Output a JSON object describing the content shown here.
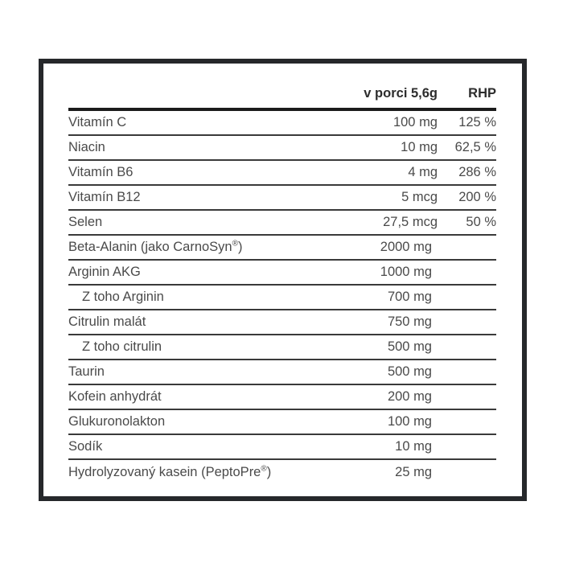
{
  "label_panel": {
    "header": {
      "amount_col": "v porci 5,6g",
      "rhp_col": "RHP"
    },
    "rows": [
      {
        "label": "Vitamín C",
        "amount": "100 mg",
        "rhp": "125 %",
        "indent": false
      },
      {
        "label": "Niacin",
        "amount": "10 mg",
        "rhp": "62,5 %",
        "indent": false
      },
      {
        "label": "Vitamín B6",
        "amount": "4 mg",
        "rhp": "286 %",
        "indent": false
      },
      {
        "label": "Vitamín B12",
        "amount": "5 mcg",
        "rhp": "200 %",
        "indent": false
      },
      {
        "label": "Selen",
        "amount": "27,5 mcg",
        "rhp": "50 %",
        "indent": false
      },
      {
        "label": "Beta-Alanin (jako CarnoSyn®)",
        "amount": "2000 mg",
        "rhp": "",
        "indent": false
      },
      {
        "label": "Arginin AKG",
        "amount": "1000 mg",
        "rhp": "",
        "indent": false
      },
      {
        "label": "Z toho Arginin",
        "amount": "700 mg",
        "rhp": "",
        "indent": true
      },
      {
        "label": "Citrulin malát",
        "amount": "750 mg",
        "rhp": "",
        "indent": false
      },
      {
        "label": "Z toho citrulin",
        "amount": "500 mg",
        "rhp": "",
        "indent": true
      },
      {
        "label": "Taurin",
        "amount": "500 mg",
        "rhp": "",
        "indent": false
      },
      {
        "label": "Kofein anhydrát",
        "amount": "200 mg",
        "rhp": "",
        "indent": false
      },
      {
        "label": "Glukuronolakton",
        "amount": "100 mg",
        "rhp": "",
        "indent": false
      },
      {
        "label": "Sodík",
        "amount": "10 mg",
        "rhp": "",
        "indent": false
      },
      {
        "label": "Hydrolyzovaný kasein (PeptoPre®)",
        "amount": "25 mg",
        "rhp": "",
        "indent": false
      }
    ]
  },
  "colors": {
    "frame_border": "#26282b",
    "header_rule": "#1b1b1b",
    "row_rule": "#3a3a3a",
    "header_text": "#2d2d2d",
    "body_text": "#4a4a4a",
    "background": "#ffffff"
  }
}
